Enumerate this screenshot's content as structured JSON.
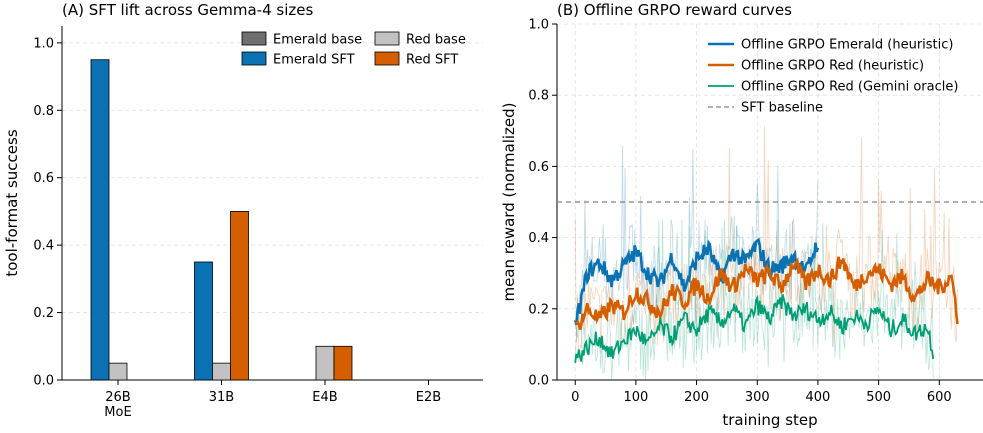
{
  "chart_data": [
    {
      "type": "bar",
      "title": "(A) SFT lift across Gemma-4 sizes",
      "xlabel": "",
      "ylabel": "tool-format success",
      "ylim": [
        0,
        1.05
      ],
      "yticks": [
        "0.0",
        "0.2",
        "0.4",
        "0.6",
        "0.8",
        "1.0"
      ],
      "categories": [
        [
          "26B",
          "MoE"
        ],
        [
          "31B"
        ],
        [
          "E4B"
        ],
        [
          "E2B"
        ]
      ],
      "legend_position": "top-right",
      "series": [
        {
          "name": "Emerald base",
          "color": "#707070",
          "values": [
            0,
            0,
            0,
            0
          ]
        },
        {
          "name": "Emerald SFT",
          "color": "#0a72b2",
          "values": [
            0.95,
            0.35,
            0,
            0
          ]
        },
        {
          "name": "Red base",
          "color": "#c2c2c2",
          "values": [
            0.05,
            0.05,
            0.1,
            0
          ]
        },
        {
          "name": "Red SFT",
          "color": "#d55e00",
          "values": [
            0,
            0.5,
            0.1,
            0
          ]
        }
      ]
    },
    {
      "type": "line",
      "title": "(B) Offline GRPO reward curves",
      "xlabel": "training step",
      "ylabel": "mean reward (normalized)",
      "xlim": [
        -30,
        672
      ],
      "ylim": [
        0,
        1.0
      ],
      "xticks": [
        "0",
        "100",
        "200",
        "300",
        "400",
        "500",
        "600"
      ],
      "yticks": [
        "0.0",
        "0.2",
        "0.4",
        "0.6",
        "0.8",
        "1.0"
      ],
      "legend_position": "top-right",
      "grid": true,
      "series": [
        {
          "name": "Offline GRPO Emerald (heuristic)",
          "color": "#0a72b2",
          "width": 2.6,
          "x": [
            0,
            20,
            40,
            60,
            80,
            100,
            120,
            140,
            160,
            180,
            200,
            220,
            240,
            260,
            280,
            300,
            320,
            340,
            360,
            380,
            400
          ],
          "y": [
            0.15,
            0.3,
            0.33,
            0.28,
            0.32,
            0.36,
            0.3,
            0.27,
            0.35,
            0.26,
            0.34,
            0.37,
            0.28,
            0.36,
            0.33,
            0.38,
            0.31,
            0.32,
            0.35,
            0.3,
            0.39
          ],
          "raw_range": [
            0.05,
            0.66
          ]
        },
        {
          "name": "Offline GRPO Red (heuristic)",
          "color": "#d55e00",
          "width": 2.6,
          "x": [
            0,
            20,
            40,
            60,
            80,
            100,
            120,
            140,
            160,
            180,
            200,
            220,
            240,
            260,
            280,
            300,
            320,
            340,
            360,
            380,
            400,
            420,
            440,
            460,
            480,
            500,
            520,
            540,
            560,
            580,
            600,
            620,
            630
          ],
          "y": [
            0.14,
            0.2,
            0.17,
            0.21,
            0.19,
            0.25,
            0.22,
            0.19,
            0.25,
            0.22,
            0.27,
            0.23,
            0.3,
            0.26,
            0.31,
            0.28,
            0.3,
            0.26,
            0.33,
            0.27,
            0.31,
            0.28,
            0.34,
            0.26,
            0.3,
            0.31,
            0.27,
            0.29,
            0.23,
            0.28,
            0.26,
            0.29,
            0.18
          ],
          "raw_range": [
            0.05,
            0.72
          ]
        },
        {
          "name": "Offline GRPO Red (Gemini oracle)",
          "color": "#009e73",
          "width": 1.8,
          "x": [
            0,
            20,
            40,
            60,
            80,
            100,
            120,
            140,
            160,
            180,
            200,
            220,
            240,
            260,
            280,
            300,
            320,
            340,
            360,
            380,
            400,
            420,
            440,
            460,
            480,
            500,
            520,
            540,
            560,
            580,
            590
          ],
          "y": [
            0.06,
            0.09,
            0.12,
            0.07,
            0.11,
            0.14,
            0.1,
            0.15,
            0.12,
            0.17,
            0.14,
            0.19,
            0.16,
            0.2,
            0.15,
            0.21,
            0.17,
            0.22,
            0.18,
            0.2,
            0.17,
            0.19,
            0.15,
            0.18,
            0.16,
            0.2,
            0.14,
            0.17,
            0.13,
            0.15,
            0.08
          ],
          "raw_range": [
            0.0,
            0.45
          ]
        },
        {
          "name": "SFT baseline",
          "color": "#808080",
          "dash": true,
          "y_const": 0.5
        }
      ]
    }
  ]
}
